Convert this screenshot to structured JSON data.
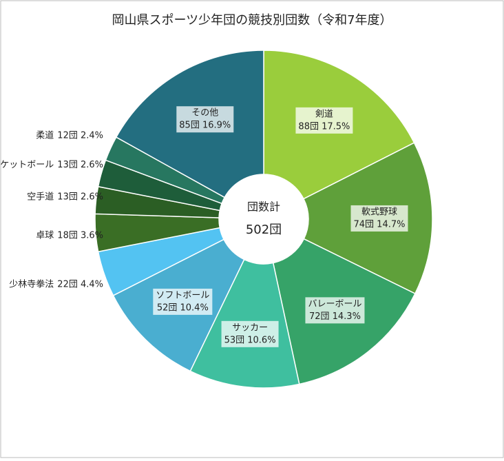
{
  "chart_data": {
    "type": "donut",
    "title": "岡山県スポーツ少年団の競技別団数（令和7年度）",
    "categories": [
      "剣道",
      "軟式野球",
      "バレーボール",
      "サッカー",
      "ソフトボール",
      "少林寺拳法",
      "卓球",
      "空手道",
      "ミニバスケットボール",
      "柔道",
      "その他"
    ],
    "values": [
      88,
      74,
      72,
      53,
      52,
      22,
      18,
      13,
      13,
      12,
      85
    ],
    "value_labels": [
      "88団 17.5%",
      "74団 14.7%",
      "72団 14.3%",
      "53団 10.6%",
      "52団 10.4%",
      "22団 4.4%",
      "18団 3.6%",
      "13団 2.6%",
      "13団 2.6%",
      "12団 2.4%",
      "85団 16.9%"
    ],
    "colors": [
      "#9acd3c",
      "#5fa03a",
      "#36a368",
      "#3fbf9f",
      "#4aaed0",
      "#53c3f2",
      "#3a6e25",
      "#2b5e24",
      "#1e5d3a",
      "#277760",
      "#236e80"
    ],
    "center_title": "団数計",
    "center_value": "502団"
  }
}
